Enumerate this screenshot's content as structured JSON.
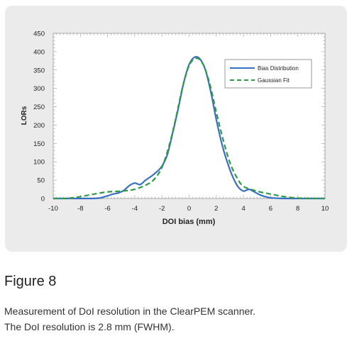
{
  "chart_data": {
    "type": "line",
    "xlabel": "DOI bias (mm)",
    "ylabel": "LORs",
    "xlim": [
      -10,
      10
    ],
    "ylim": [
      0,
      450
    ],
    "xticks": [
      "-10",
      "-8",
      "-6",
      "-4",
      "-2",
      "0",
      "2",
      "4",
      "6",
      "8",
      "10"
    ],
    "yticks": [
      "0",
      "50",
      "100",
      "150",
      "200",
      "250",
      "300",
      "350",
      "400",
      "450"
    ],
    "legend_position": "top-right",
    "series": [
      {
        "name": "Bias Distribution",
        "color": "#3a6fc4",
        "style": "solid",
        "x": [
          -10,
          -7,
          -6.2,
          -5.6,
          -5.2,
          -4.8,
          -4.4,
          -4.0,
          -3.6,
          -3.2,
          -2.8,
          -2.4,
          -2.0,
          -1.6,
          -1.2,
          -0.8,
          -0.4,
          0.0,
          0.4,
          0.8,
          1.2,
          1.6,
          2.0,
          2.4,
          2.8,
          3.2,
          3.6,
          4.0,
          4.4,
          4.8,
          5.2,
          5.6,
          6.0,
          7.0,
          10
        ],
        "y": [
          0,
          0,
          5,
          12,
          15,
          22,
          35,
          42,
          38,
          50,
          60,
          72,
          88,
          120,
          180,
          245,
          315,
          365,
          385,
          380,
          350,
          290,
          215,
          150,
          100,
          60,
          32,
          20,
          25,
          18,
          10,
          5,
          2,
          0,
          0
        ]
      },
      {
        "name": "Gaussian Fit",
        "color": "#2e9a48",
        "style": "dashed",
        "x": [
          -10,
          -9.0,
          -8.0,
          -7.0,
          -6.0,
          -5.0,
          -4.0,
          -3.0,
          -2.5,
          -2.0,
          -1.5,
          -1.0,
          -0.5,
          0.0,
          0.5,
          1.0,
          1.5,
          2.0,
          2.5,
          3.0,
          3.5,
          4.0,
          5.0,
          6.0,
          7.0,
          8.0,
          9.0,
          10
        ],
        "y": [
          0,
          0,
          5,
          12,
          18,
          20,
          25,
          40,
          55,
          85,
          140,
          215,
          300,
          362,
          382,
          368,
          315,
          235,
          160,
          98,
          58,
          33,
          20,
          12,
          5,
          1,
          0,
          0
        ]
      }
    ]
  },
  "figure": {
    "title": "Figure 8",
    "caption_line1": "Measurement of DoI resolution in the ClearPEM scanner.",
    "caption_line2": "The DoI resolution is 2.8 mm (FWHM)."
  }
}
